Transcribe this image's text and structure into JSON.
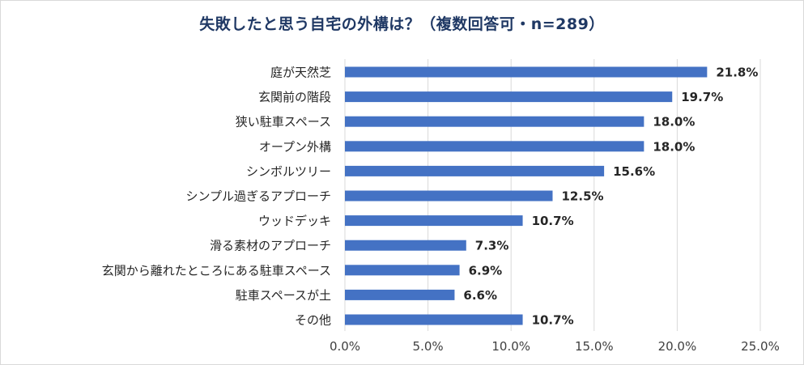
{
  "chart_data": {
    "type": "bar",
    "orientation": "horizontal",
    "title": "失敗したと思う自宅の外構は？（複数回答可・n=289）",
    "categories": [
      "庭が天然芝",
      "玄関前の階段",
      "狭い駐車スペース",
      "オープン外構",
      "シンボルツリー",
      "シンプル過ぎるアプローチ",
      "ウッドデッキ",
      "滑る素材のアプローチ",
      "玄関から離れたところにある駐車スペース",
      "駐車スペースが土",
      "その他"
    ],
    "values": [
      21.8,
      19.7,
      18.0,
      18.0,
      15.6,
      12.5,
      10.7,
      7.3,
      6.9,
      6.6,
      10.7
    ],
    "value_labels": [
      "21.8%",
      "19.7%",
      "18.0%",
      "18.0%",
      "15.6%",
      "12.5%",
      "10.7%",
      "7.3%",
      "6.9%",
      "6.6%",
      "10.7%"
    ],
    "xlim": [
      0,
      25
    ],
    "x_ticks": [
      0,
      5,
      10,
      15,
      20,
      25
    ],
    "x_tick_labels": [
      "0.0%",
      "5.0%",
      "10.0%",
      "15.0%",
      "20.0%",
      "25.0%"
    ],
    "xlabel": "",
    "ylabel": "",
    "grid": "vertical",
    "legend": "none",
    "bar_color": "#4472c4",
    "grid_color": "#d9d9d9"
  }
}
